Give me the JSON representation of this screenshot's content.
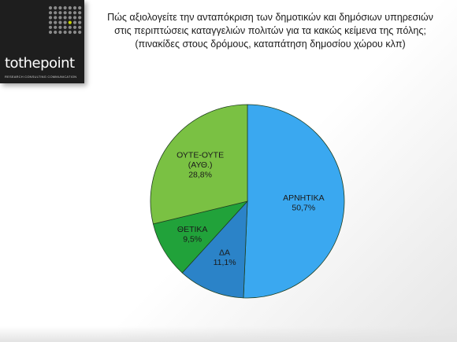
{
  "logo": {
    "wordmark_a": "tothe",
    "wordmark_b": "point",
    "tagline": "RESEARCH  CONSULTING  COMMUNICATION"
  },
  "title_lines": [
    "Πώς αξιολογείτε την ανταπόκριση των δημοτικών και δημόσιων υπηρεσιών",
    "στις περιπτώσεις καταγγελιών πολιτών για τα κακώς κείμενα της πόλης;",
    "(πινακίδες στους δρόμους, καταπάτηση δημοσίου χώρου κλπ)"
  ],
  "colors": {
    "negative": "#3aa8f0",
    "positive_da": "#2b83c8",
    "positive": "#21a23a",
    "neutral": "#7ac143",
    "logo_bg": "#1e1e1e",
    "logo_dot": "#8a8a8a",
    "logo_dot_accent": "#c8d400"
  },
  "chart_data": {
    "type": "pie",
    "title": "",
    "slices": [
      {
        "label": "ΑΡΝΗΤΙΚΑ",
        "value": 50.7,
        "display": "50,7%",
        "color": "#3aa8f0"
      },
      {
        "label": "ΔΑ",
        "value": 11.1,
        "display": "11,1%",
        "color": "#2b83c8"
      },
      {
        "label": "ΘΕΤΙΚΑ",
        "value": 9.5,
        "display": "9,5%",
        "color": "#21a23a"
      },
      {
        "label": "ΟΥΤΕ-ΟΥΤΕ (ΑΥΘ.)",
        "label_lines": [
          "ΟΥΤΕ-ΟΥΤΕ",
          "(ΑΥΘ.)"
        ],
        "value": 28.8,
        "display": "28,8%",
        "color": "#7ac143"
      }
    ]
  }
}
